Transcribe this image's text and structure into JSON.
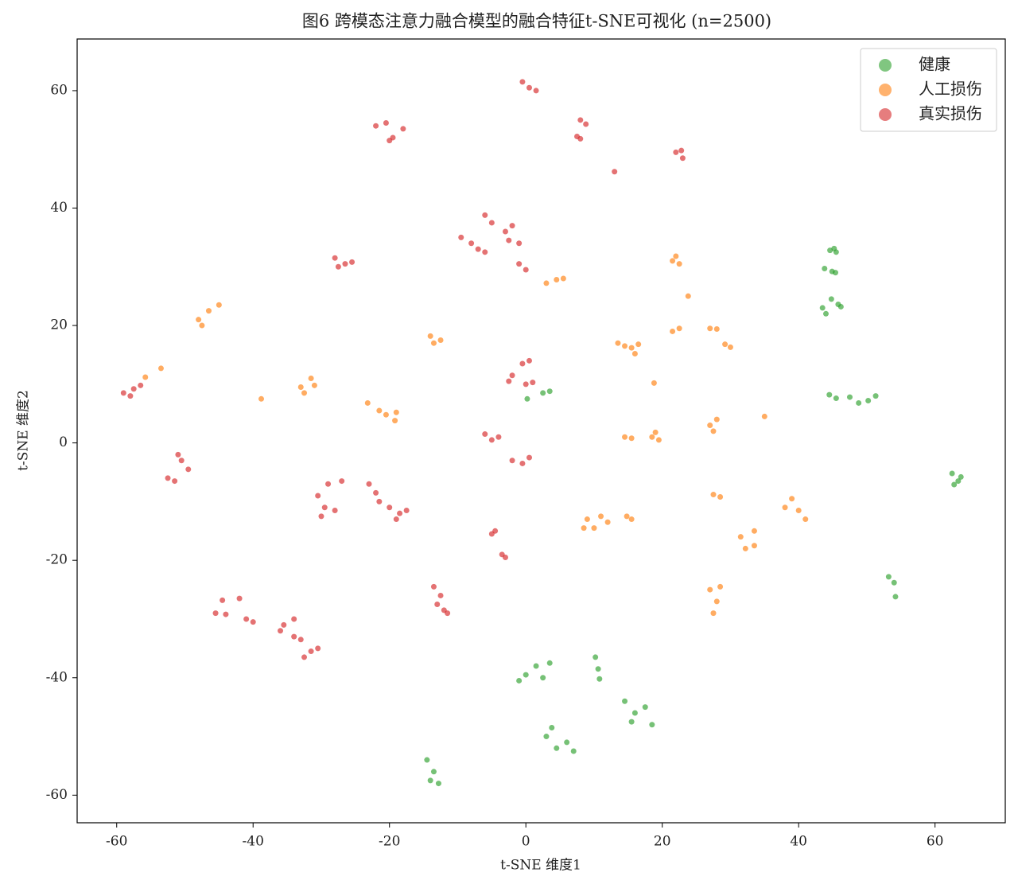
{
  "chart_data": {
    "type": "scatter",
    "title": "图6 跨模态注意力融合模型的融合特征t-SNE可视化 (n=2500)",
    "x_label": "t-SNE 维度1",
    "y_label": "t-SNE 维度2",
    "xlim": [
      -65.8,
      70.3
    ],
    "ylim": [
      -64.7,
      68.8
    ],
    "xticks": [
      -60,
      -40,
      -20,
      0,
      20,
      40,
      60
    ],
    "yticks": [
      -60,
      -40,
      -20,
      0,
      20,
      40,
      60
    ],
    "legend": "upper right",
    "series": [
      {
        "name": "健康",
        "color": "#2ca02c",
        "x": [
          45.2,
          44.6,
          45.5,
          43.8,
          44.9,
          45.4,
          43.5,
          44.8,
          45.8,
          44.0,
          46.2,
          44.5,
          45.5,
          47.5,
          48.8,
          50.2,
          51.3,
          62.5,
          63.4,
          62.8,
          63.8,
          53.2,
          54.0,
          54.2,
          0,
          1.5,
          2.5,
          3.5,
          -1,
          2.5,
          3.5,
          0.2,
          10.2,
          10.6,
          10.8,
          14.5,
          16,
          17.5,
          18.5,
          15.5,
          3,
          4.5,
          6,
          7,
          3.8,
          -14.5,
          -13.5,
          -12.8,
          -14
        ],
        "y": [
          33.1,
          32.8,
          32.5,
          29.7,
          29.2,
          29.0,
          23.0,
          24.5,
          23.6,
          22.0,
          23.2,
          8.2,
          7.6,
          7.8,
          6.8,
          7.2,
          8.0,
          -5.2,
          -6.5,
          -7.1,
          -5.8,
          -22.8,
          -23.8,
          -26.2,
          -39.5,
          -38,
          -40,
          -37.5,
          -40.5,
          8.5,
          8.8,
          7.5,
          -36.5,
          -38.5,
          -40.2,
          -44,
          -46,
          -45,
          -48,
          -47.5,
          -50,
          -52,
          -51,
          -52.5,
          -48.5,
          -54,
          -56,
          -58,
          -57.5
        ]
      },
      {
        "name": "人工损伤",
        "color": "#ff7f0e",
        "x": [
          -48,
          -46.5,
          -45,
          -47.5,
          -53.5,
          -55.8,
          -38.8,
          -33,
          -31.5,
          -32.5,
          -31,
          -21.5,
          -20.5,
          -23.2,
          -19,
          -19.2,
          -14,
          -12.5,
          -13.5,
          3,
          4.5,
          5.5,
          21.5,
          22.5,
          22,
          23.8,
          21.5,
          22.5,
          27,
          28,
          29.2,
          30,
          13.5,
          14.5,
          15.5,
          16.5,
          16,
          18.8,
          14.5,
          15.5,
          18.5,
          19.5,
          19,
          27,
          28,
          27.5,
          35,
          27.5,
          28.5,
          9,
          10,
          11,
          8.5,
          12,
          14.8,
          15.5,
          31.5,
          32.2,
          33.5,
          33.5,
          38,
          40,
          41,
          39,
          27,
          28,
          28.5,
          27.5
        ],
        "y": [
          21,
          22.5,
          23.5,
          20,
          12.7,
          11.2,
          7.5,
          9.5,
          11,
          8.5,
          9.8,
          5.5,
          4.8,
          6.8,
          5.2,
          3.8,
          18.2,
          17.5,
          17,
          27.2,
          27.8,
          28,
          31,
          30.5,
          31.8,
          25,
          19,
          19.5,
          19.5,
          19.4,
          16.8,
          16.3,
          17,
          16.5,
          16.2,
          16.8,
          15.2,
          10.2,
          1,
          0.8,
          1,
          0.5,
          1.8,
          3,
          4,
          2,
          4.5,
          -8.8,
          -9.2,
          -13,
          -14.5,
          -12.5,
          -14.5,
          -13.5,
          -12.5,
          -13,
          -16,
          -18,
          -17.5,
          -15,
          -11,
          -11.5,
          -13,
          -9.5,
          -25,
          -27,
          -24.5,
          -29
        ]
      },
      {
        "name": "真实损伤",
        "color": "#d62728",
        "x": [
          -22,
          -20.5,
          -19.5,
          -18,
          -20,
          -0.5,
          0.5,
          1.5,
          8,
          8.8,
          7.5,
          8,
          13,
          22,
          23,
          22.8,
          -28,
          -26.5,
          -25.5,
          -27.5,
          -9.5,
          -8,
          -7,
          -6,
          -6,
          -5,
          -3,
          -2.5,
          -2,
          -1,
          -1,
          0,
          -0.5,
          0.5,
          -2,
          -2.5,
          0,
          1,
          -6,
          -5,
          -4,
          -2,
          -0.5,
          0.5,
          -59,
          -57.5,
          -56.5,
          -58,
          -52.5,
          -51.5,
          -50.5,
          -49.5,
          -51,
          -30.5,
          -29.5,
          -30,
          -29,
          -27,
          -28,
          -23,
          -22,
          -21.5,
          -20,
          -18.5,
          -17.5,
          -19,
          -5,
          -4.5,
          -3.5,
          -3,
          -13.5,
          -12.5,
          -13,
          -12,
          -11.5,
          -44.5,
          -42,
          -45.5,
          -44,
          -41,
          -40,
          -35.5,
          -34,
          -36,
          -33,
          -34,
          -31.5,
          -30.5,
          -32.5
        ],
        "y": [
          54,
          54.5,
          52,
          53.5,
          51.5,
          61.5,
          60.5,
          60,
          55,
          54.3,
          52.2,
          51.8,
          46.2,
          49.5,
          48.5,
          49.8,
          31.5,
          30.5,
          30.8,
          30,
          35,
          34,
          33,
          32.5,
          38.8,
          37.5,
          36,
          34.5,
          37,
          34,
          30.5,
          29.5,
          13.5,
          14,
          11.5,
          10.5,
          10,
          10.3,
          1.5,
          0.5,
          1,
          -3,
          -3.5,
          -2.5,
          8.5,
          9.2,
          9.8,
          8,
          -6,
          -6.5,
          -3,
          -4.5,
          -2,
          -9,
          -11,
          -12.5,
          -7,
          -6.5,
          -11.5,
          -7,
          -8.5,
          -10,
          -11,
          -12,
          -11.5,
          -13,
          -15.5,
          -15,
          -19,
          -19.5,
          -24.5,
          -26,
          -27.5,
          -28.5,
          -29,
          -26.8,
          -26.5,
          -29,
          -29.2,
          -30,
          -30.5,
          -31,
          -30,
          -32,
          -33.5,
          -33,
          -35.5,
          -35,
          -36.5
        ]
      }
    ]
  }
}
